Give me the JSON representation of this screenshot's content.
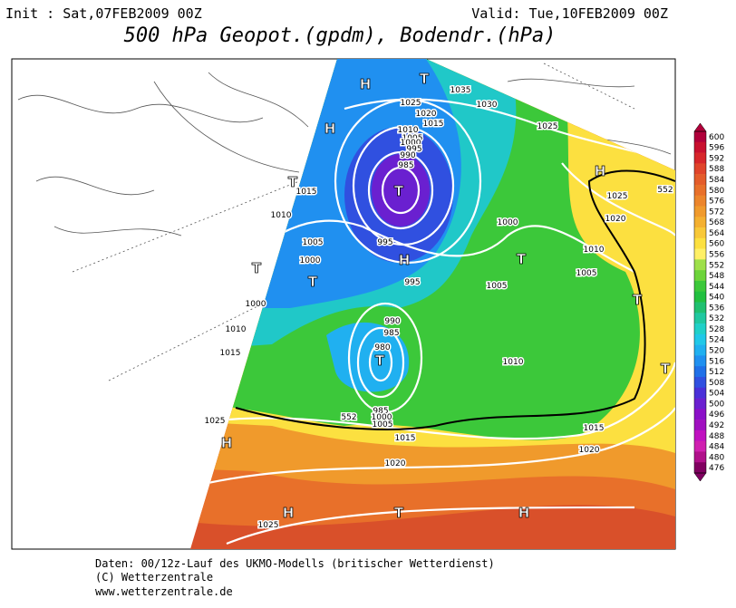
{
  "header": {
    "init": "Init : Sat,07FEB2009 00Z",
    "valid": "Valid: Tue,10FEB2009 00Z",
    "title": "500 hPa Geopot.(gpdm), Bodendr.(hPa)"
  },
  "map": {
    "isobar_labels": [
      "1035",
      "1030",
      "1025",
      "1020",
      "1015",
      "1010",
      "1005",
      "1000",
      "995",
      "990",
      "985",
      "1015",
      "1010",
      "1005",
      "1000",
      "1000",
      "995",
      "995",
      "1000",
      "1010",
      "1005",
      "1005",
      "1010",
      "1015",
      "1010",
      "990",
      "985",
      "980",
      "985",
      "1000",
      "1005",
      "1025",
      "1015",
      "1020",
      "1025",
      "1015",
      "1020",
      "1025",
      "1025",
      "1020",
      "552",
      "552"
    ],
    "pressure_systems": [
      "H",
      "T",
      "H",
      "T",
      "T",
      "H",
      "T",
      "T",
      "T",
      "T",
      "T",
      "T",
      "H",
      "H",
      "H",
      "T",
      "H"
    ]
  },
  "colorbar": {
    "levels": [
      600,
      596,
      592,
      588,
      584,
      580,
      576,
      572,
      568,
      564,
      560,
      556,
      552,
      548,
      544,
      540,
      536,
      532,
      528,
      524,
      520,
      516,
      512,
      508,
      504,
      500,
      496,
      492,
      488,
      484,
      480,
      476
    ],
    "colors": [
      "#b0003a",
      "#c8102e",
      "#d7262a",
      "#e0442a",
      "#e45c2a",
      "#e8702a",
      "#ec852b",
      "#f09a2c",
      "#f4b030",
      "#f8c838",
      "#fce040",
      "#fff066",
      "#9ee04a",
      "#6cd43a",
      "#3cc83a",
      "#22c040",
      "#20c070",
      "#20c8a0",
      "#20d0c8",
      "#20c8e8",
      "#20b0f0",
      "#2090f0",
      "#2070e8",
      "#3050e0",
      "#4a30d8",
      "#6a20d0",
      "#8a10c8",
      "#a010c0",
      "#c010c0",
      "#d020b0",
      "#b0108a",
      "#800060"
    ]
  },
  "footer": {
    "lines": [
      "Daten: 00/12z-Lauf des UKMO-Modells (britischer Wetterdienst)",
      "(C) Wetterzentrale",
      "www.wetterzentrale.de"
    ]
  }
}
